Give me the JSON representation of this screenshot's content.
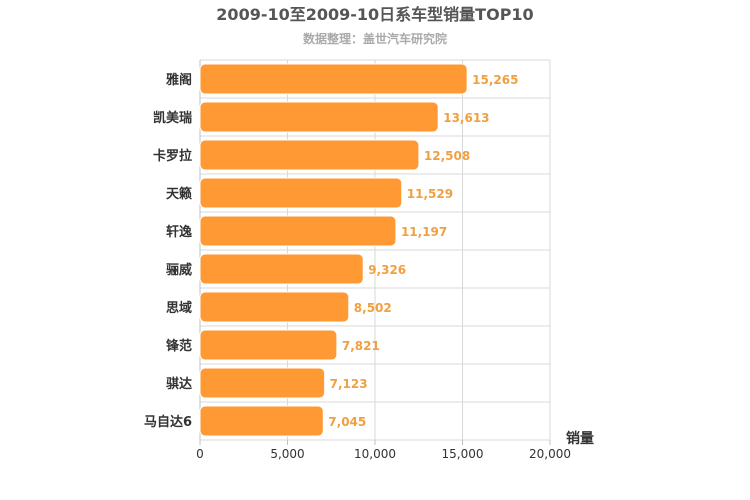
{
  "chart_data": {
    "type": "bar",
    "orientation": "horizontal",
    "title": "2009-10至2009-10日系车型销量TOP10",
    "subtitle": "数据整理：盖世汽车研究院",
    "categories": [
      "雅阁",
      "凯美瑞",
      "卡罗拉",
      "天籁",
      "轩逸",
      "骊威",
      "思域",
      "锋范",
      "骐达",
      "马自达6"
    ],
    "values": [
      15265,
      13613,
      12508,
      11529,
      11197,
      9326,
      8502,
      7821,
      7123,
      7045
    ],
    "value_labels": [
      "15,265",
      "13,613",
      "12,508",
      "11,529",
      "11,197",
      "9,326",
      "8,502",
      "7,821",
      "7,123",
      "7,045"
    ],
    "xlabel": "销量",
    "xlim": [
      0,
      20000
    ],
    "ticks": [
      0,
      5000,
      10000,
      15000,
      20000
    ],
    "tick_labels": [
      "0",
      "5,000",
      "10,000",
      "15,000",
      "20,000"
    ],
    "grid": true,
    "bar_color": "#ff9933",
    "legend": "none"
  }
}
